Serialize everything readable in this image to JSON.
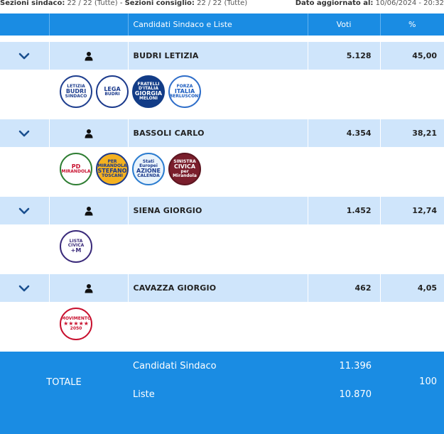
{
  "topbar": {
    "sezioni_sindaco_label": "Sezioni sindaco:",
    "sezioni_sindaco_value": "22 / 22 (Tutte)",
    "separator": "-",
    "sezioni_consiglio_label": "Sezioni consiglio:",
    "sezioni_consiglio_value": "22 / 22 (Tutte)",
    "updated_label": "Dato aggiornato al:",
    "updated_value": "10/06/2024 - 20:32"
  },
  "table": {
    "headers": {
      "candidates": "Candidati Sindaco e Liste",
      "votes": "Voti",
      "percent": "%"
    },
    "candidates": [
      {
        "name": "BUDRI LETIZIA",
        "votes": "5.128",
        "percent": "45,00",
        "lists": [
          {
            "lines": [
              "LETIZIA",
              "BUDRI",
              "SINDACO"
            ],
            "bg": "#ffffff",
            "fg": "#1f3f8f",
            "border": "#1f3f8f"
          },
          {
            "lines": [
              "",
              "LEGA",
              "BUDRI"
            ],
            "bg": "#ffffff",
            "fg": "#1b3a8c",
            "border": "#1b3a8c"
          },
          {
            "lines": [
              "FRATELLI D'ITALIA",
              "GIORGIA",
              "MELONI"
            ],
            "bg": "#123c87",
            "fg": "#ffffff",
            "border": "#123c87"
          },
          {
            "lines": [
              "FORZA",
              "ITALIA",
              "BERLUSCONI"
            ],
            "bg": "#ffffff",
            "fg": "#1a5bbf",
            "border": "#2f6ec9"
          }
        ]
      },
      {
        "name": "BASSOLI CARLO",
        "votes": "4.354",
        "percent": "38,21",
        "lists": [
          {
            "lines": [
              "",
              "PD",
              "MIRANDOLA"
            ],
            "bg": "#ffffff",
            "fg": "#c8102e",
            "border": "#2e7d32"
          },
          {
            "lines": [
              "PER MIRANDOLA",
              "STEFANO",
              "TOSCANI"
            ],
            "bg": "#f4b120",
            "fg": "#1b3a8c",
            "border": "#1b3a8c"
          },
          {
            "lines": [
              "Stati Europei",
              "AZIONE",
              "CALENDA"
            ],
            "bg": "#e9f3fb",
            "fg": "#1b3a8c",
            "border": "#2b7ccf"
          },
          {
            "lines": [
              "SINISTRA",
              "CIVICA",
              "per Mirandola"
            ],
            "bg": "#7a1e2c",
            "fg": "#ffffff",
            "border": "#5c1520"
          }
        ]
      },
      {
        "name": "SIENA GIORGIO",
        "votes": "1.452",
        "percent": "12,74",
        "lists": [
          {
            "lines": [
              "LISTA CIVICA",
              "+M",
              ""
            ],
            "bg": "#ffffff",
            "fg": "#3a2a7a",
            "border": "#3a2a7a"
          }
        ]
      },
      {
        "name": "CAVAZZA GIORGIO",
        "votes": "462",
        "percent": "4,05",
        "lists": [
          {
            "lines": [
              "MOVIMENTO",
              "★★★★★",
              "2050"
            ],
            "bg": "#ffffff",
            "fg": "#c8102e",
            "border": "#c8102e"
          }
        ]
      }
    ],
    "totale": {
      "label": "TOTALE",
      "sindaco_label": "Candidati Sindaco",
      "sindaco_votes": "11.396",
      "percent": "100",
      "liste_label": "Liste",
      "liste_votes": "10.870"
    }
  },
  "icons": {
    "expand": "chevron-down-icon",
    "candidate": "user-icon"
  },
  "colors": {
    "header_blue": "#1a8ce3",
    "row_light_blue": "#cfe5fb",
    "chevron": "#1a4f8f"
  }
}
